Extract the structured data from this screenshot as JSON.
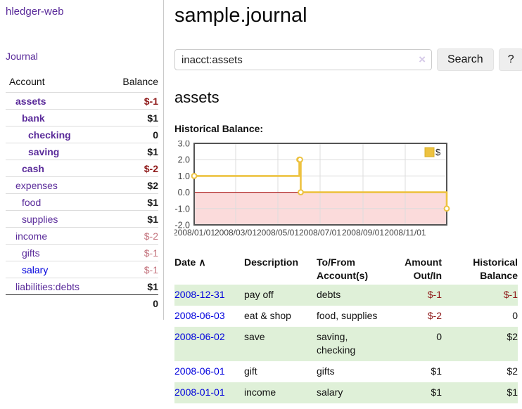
{
  "sidebar": {
    "app_title": "hledger-web",
    "nav_journal": "Journal",
    "accounts": {
      "header": {
        "account": "Account",
        "balance": "Balance"
      },
      "rows": [
        {
          "name": "assets",
          "balance": "$-1",
          "depth": 1,
          "inacct": true,
          "balance_style": "negative-strong"
        },
        {
          "name": "bank",
          "balance": "$1",
          "depth": 2,
          "inacct": true,
          "balance_style": "positive"
        },
        {
          "name": "checking",
          "balance": "0",
          "depth": 3,
          "inacct": true,
          "balance_style": "positive"
        },
        {
          "name": "saving",
          "balance": "$1",
          "depth": 3,
          "inacct": true,
          "balance_style": "positive"
        },
        {
          "name": "cash",
          "balance": "$-2",
          "depth": 2,
          "inacct": true,
          "balance_style": "negative-strong"
        },
        {
          "name": "expenses",
          "balance": "$2",
          "depth": 1,
          "inacct": false,
          "balance_style": "positive"
        },
        {
          "name": "food",
          "balance": "$1",
          "depth": 2,
          "inacct": false,
          "balance_style": "positive"
        },
        {
          "name": "supplies",
          "balance": "$1",
          "depth": 2,
          "inacct": false,
          "balance_style": "positive"
        },
        {
          "name": "income",
          "balance": "$-2",
          "depth": 1,
          "inacct": false,
          "balance_style": "negative-soft"
        },
        {
          "name": "gifts",
          "balance": "$-1",
          "depth": 2,
          "inacct": false,
          "balance_style": "negative-soft"
        },
        {
          "name": "salary",
          "balance": "$-1",
          "depth": 2,
          "inacct": false,
          "balance_style": "negative-soft",
          "link_style": "unvisited"
        },
        {
          "name": "liabilities:debts",
          "balance": "$1",
          "depth": 1,
          "inacct": false,
          "balance_style": "positive"
        }
      ],
      "total": "0"
    }
  },
  "main": {
    "title": "sample.journal",
    "search": {
      "value": "inacct:assets",
      "clear_icon": "×",
      "search_button": "Search",
      "help_button": "?"
    },
    "section_title": "assets",
    "chart_label": "Historical Balance:"
  },
  "chart_data": {
    "type": "line",
    "step": true,
    "title": "Historical Balance",
    "series": [
      {
        "name": "$",
        "color": "#edc240",
        "points": [
          {
            "date": "2008/01/01",
            "day": 0,
            "value": 1
          },
          {
            "date": "2008/06/01",
            "day": 152,
            "value": 2
          },
          {
            "date": "2008/06/02",
            "day": 153,
            "value": 2
          },
          {
            "date": "2008/06/03",
            "day": 154,
            "value": 0
          },
          {
            "date": "2008/12/31",
            "day": 365,
            "value": -1
          }
        ]
      }
    ],
    "x_ticks": [
      {
        "day": 0,
        "label": "2008/01/01"
      },
      {
        "day": 60,
        "label": "2008/03/01"
      },
      {
        "day": 121,
        "label": "2008/05/01"
      },
      {
        "day": 182,
        "label": "2008/07/01"
      },
      {
        "day": 244,
        "label": "2008/09/01"
      },
      {
        "day": 305,
        "label": "2008/11/01"
      }
    ],
    "x_range_days": [
      0,
      365
    ],
    "y_ticks": [
      "3.0",
      "2.0",
      "1.0",
      "0.0",
      "-1.0",
      "-2.0"
    ],
    "ylim": [
      -2,
      3
    ],
    "legend": {
      "label": "$",
      "position": "top-right"
    },
    "negative_region": {
      "from": -2,
      "to": 0,
      "fill": "#fbdbdb",
      "line_color": "#a40000"
    },
    "grid": true,
    "colors": {
      "border": "#545454",
      "gridline": "#dcdcdc",
      "tick_text": "#444444",
      "marker_fill": "#ffffff",
      "legend_box_border": "#d8b028"
    }
  },
  "register": {
    "headers": {
      "date": "Date",
      "sort_indicator": "∧",
      "description": "Description",
      "accounts": "To/From Account(s)",
      "amount": "Amount Out/In",
      "balance": "Historical Balance"
    },
    "rows": [
      {
        "date": "2008-12-31",
        "description": "pay off",
        "accounts": "debts",
        "amount": "$-1",
        "amount_negative": true,
        "balance": "$-1",
        "balance_negative": true,
        "shaded": true
      },
      {
        "date": "2008-06-03",
        "description": "eat & shop",
        "accounts": "food, supplies",
        "amount": "$-2",
        "amount_negative": true,
        "balance": "0",
        "balance_negative": false,
        "shaded": false
      },
      {
        "date": "2008-06-02",
        "description": "save",
        "accounts": "saving, checking",
        "amount": "0",
        "amount_negative": false,
        "balance": "$2",
        "balance_negative": false,
        "shaded": true
      },
      {
        "date": "2008-06-01",
        "description": "gift",
        "accounts": "gifts",
        "amount": "$1",
        "amount_negative": false,
        "balance": "$2",
        "balance_negative": false,
        "shaded": false
      },
      {
        "date": "2008-01-01",
        "description": "income",
        "accounts": "salary",
        "amount": "$1",
        "amount_negative": false,
        "balance": "$1",
        "balance_negative": false,
        "shaded": true
      }
    ]
  },
  "colors": {
    "link_purple": "#5a2b9a",
    "link_blue": "#0000dd",
    "negative_strong": "#8f1a1a",
    "negative_soft": "#c4747e",
    "row_shade_green": "#dff0d8"
  }
}
